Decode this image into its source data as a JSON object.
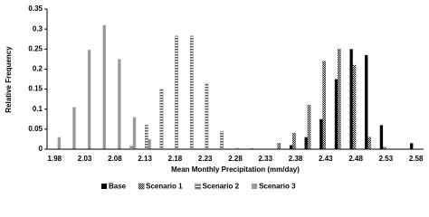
{
  "chart_data": {
    "type": "bar",
    "y_label": "Relative Frequency",
    "x_label": "Mean Monthly Precipitation (mm/day)",
    "categories": [
      "1.98",
      null,
      "2.03",
      null,
      "2.08",
      null,
      "2.13",
      null,
      "2.18",
      null,
      "2.23",
      null,
      "2.28",
      null,
      "2.33",
      null,
      "2.38",
      null,
      "2.43",
      null,
      "2.48",
      null,
      "2.53",
      null,
      "2.58"
    ],
    "series": [
      {
        "name": "Base",
        "color": "#000000",
        "pattern": "solid",
        "values": [
          0,
          0,
          0,
          0,
          0,
          0,
          0,
          0,
          0,
          0,
          0,
          0,
          0,
          0,
          0,
          0,
          0.01,
          0.03,
          0.075,
          0.175,
          0.25,
          0.235,
          0.06,
          0,
          0.015
        ]
      },
      {
        "name": "Scenario 1",
        "color": "#444444",
        "pattern": "crosshatch",
        "values": [
          0,
          0,
          0,
          0,
          0,
          0,
          0,
          0,
          0,
          0,
          0,
          0,
          0,
          0,
          0,
          0.015,
          0.04,
          0.11,
          0.22,
          0.25,
          0.21,
          0.03,
          0.005,
          0,
          0
        ]
      },
      {
        "name": "Scenario 2",
        "color": "#666666",
        "pattern": "horizontal",
        "values": [
          0,
          0,
          0,
          0,
          0,
          0.01,
          0.06,
          0.15,
          0.283,
          0.283,
          0.165,
          0.045,
          0.003,
          0.002,
          0,
          0,
          0,
          0,
          0,
          0,
          0,
          0,
          0,
          0,
          0
        ]
      },
      {
        "name": "Scenario 3",
        "color": "#999999",
        "pattern": "solid",
        "values": [
          0.03,
          0.105,
          0.248,
          0.31,
          0.225,
          0.08,
          0.025,
          0,
          0,
          0,
          0,
          0,
          0,
          0,
          0,
          0,
          0,
          0,
          0,
          0,
          0,
          0,
          0,
          0,
          0
        ]
      }
    ],
    "ylim": [
      0,
      0.35
    ],
    "yticks": [
      0,
      0.05,
      0.1,
      0.15,
      0.2,
      0.25,
      0.3,
      0.35
    ],
    "grid": false
  }
}
